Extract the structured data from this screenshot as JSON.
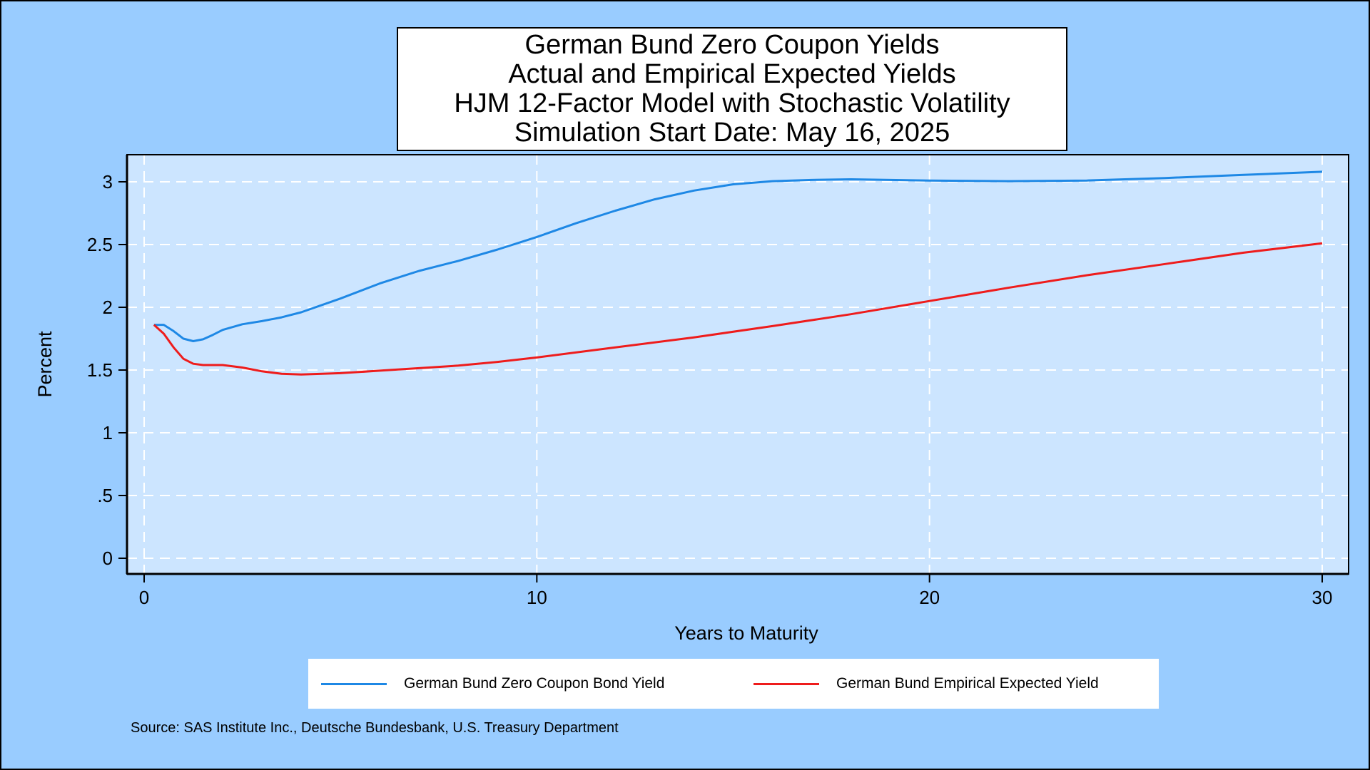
{
  "chart_data": {
    "type": "line",
    "title": [
      "German Bund Zero Coupon Yields",
      "Actual and Empirical Expected Yields",
      "HJM 12-Factor Model with Stochastic Volatility",
      "Simulation Start Date: May 16, 2025"
    ],
    "xlabel": "Years to Maturity",
    "ylabel": "Percent",
    "xlim": [
      0,
      30
    ],
    "ylim": [
      0,
      3.2
    ],
    "xticks": [
      0,
      10,
      20,
      30
    ],
    "xtick_labels": [
      "0",
      "10",
      "20",
      "30"
    ],
    "yticks": [
      0,
      0.5,
      1,
      1.5,
      2,
      2.5,
      3
    ],
    "ytick_labels": [
      "0",
      ".5",
      "1",
      "1.5",
      "2",
      "2.5",
      "3"
    ],
    "grid": true,
    "legend_position": "bottom",
    "series": [
      {
        "name": "German Bund Zero Coupon Bond Yield",
        "color": "#1e88e5",
        "points": [
          [
            0.25,
            1.86
          ],
          [
            0.5,
            1.86
          ],
          [
            0.75,
            1.81
          ],
          [
            1.0,
            1.75
          ],
          [
            1.25,
            1.73
          ],
          [
            1.5,
            1.745
          ],
          [
            1.75,
            1.78
          ],
          [
            2.0,
            1.82
          ],
          [
            2.5,
            1.865
          ],
          [
            3.0,
            1.89
          ],
          [
            3.5,
            1.92
          ],
          [
            4.0,
            1.96
          ],
          [
            5.0,
            2.07
          ],
          [
            6.0,
            2.19
          ],
          [
            7.0,
            2.29
          ],
          [
            8.0,
            2.37
          ],
          [
            9.0,
            2.46
          ],
          [
            10.0,
            2.56
          ],
          [
            11.0,
            2.67
          ],
          [
            12.0,
            2.77
          ],
          [
            13.0,
            2.86
          ],
          [
            14.0,
            2.93
          ],
          [
            15.0,
            2.98
          ],
          [
            16.0,
            3.005
          ],
          [
            17.0,
            3.015
          ],
          [
            18.0,
            3.02
          ],
          [
            19.0,
            3.015
          ],
          [
            20.0,
            3.01
          ],
          [
            22.0,
            3.005
          ],
          [
            24.0,
            3.01
          ],
          [
            26.0,
            3.03
          ],
          [
            28.0,
            3.055
          ],
          [
            30.0,
            3.08
          ]
        ]
      },
      {
        "name": "German Bund Empirical Expected Yield",
        "color": "#ee1c1c",
        "points": [
          [
            0.25,
            1.86
          ],
          [
            0.5,
            1.79
          ],
          [
            0.75,
            1.68
          ],
          [
            1.0,
            1.59
          ],
          [
            1.25,
            1.55
          ],
          [
            1.5,
            1.54
          ],
          [
            2.0,
            1.54
          ],
          [
            2.5,
            1.52
          ],
          [
            3.0,
            1.49
          ],
          [
            3.5,
            1.47
          ],
          [
            4.0,
            1.465
          ],
          [
            5.0,
            1.475
          ],
          [
            6.0,
            1.495
          ],
          [
            7.0,
            1.515
          ],
          [
            8.0,
            1.535
          ],
          [
            9.0,
            1.565
          ],
          [
            10.0,
            1.6
          ],
          [
            12.0,
            1.68
          ],
          [
            14.0,
            1.76
          ],
          [
            16.0,
            1.85
          ],
          [
            18.0,
            1.945
          ],
          [
            20.0,
            2.05
          ],
          [
            22.0,
            2.155
          ],
          [
            24.0,
            2.255
          ],
          [
            26.0,
            2.345
          ],
          [
            28.0,
            2.435
          ],
          [
            30.0,
            2.51
          ]
        ]
      }
    ],
    "source": "Source: SAS Institute Inc., Deutsche Bundesbank, U.S. Treasury Department"
  },
  "colors": {
    "outer_background": "#99ccff",
    "plot_background": "#cce5ff",
    "grid": "#ffffff"
  }
}
